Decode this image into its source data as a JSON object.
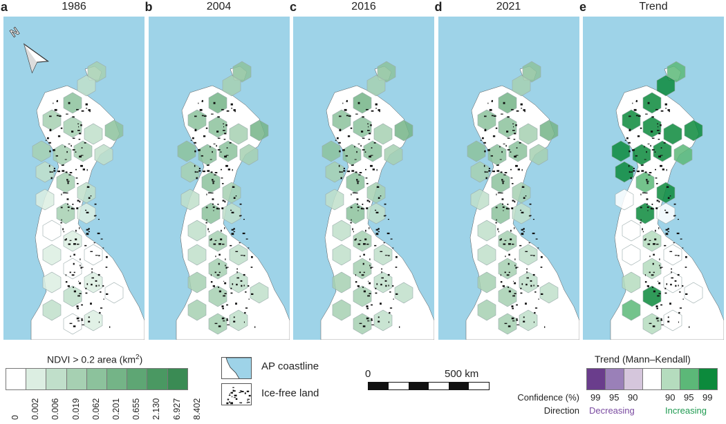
{
  "panels": [
    {
      "letter": "a",
      "year": "1986"
    },
    {
      "letter": "b",
      "year": "2004"
    },
    {
      "letter": "c",
      "year": "2016"
    },
    {
      "letter": "d",
      "year": "2021"
    },
    {
      "letter": "e",
      "year": "Trend"
    }
  ],
  "north_label": "N",
  "legend_ndvi": {
    "title_prefix": "NDVI > 0.2 area (km",
    "title_sup": "2",
    "title_suffix": ")",
    "ticks": [
      "0",
      "0.002",
      "0.006",
      "0.019",
      "0.062",
      "0.201",
      "0.655",
      "2.130",
      "6.927",
      "8.402"
    ],
    "colors": [
      "#ffffff",
      "#dceee2",
      "#c0dfca",
      "#a6d0b2",
      "#8cc29c",
      "#74b487",
      "#5ea674",
      "#4a9862",
      "#3a8b54"
    ]
  },
  "legend_map": {
    "coastline_label": "AP coastline",
    "icefree_label": "Ice-free land"
  },
  "scale_bar": {
    "start": "0",
    "end": "500 km"
  },
  "legend_trend": {
    "title": "Trend (Mann–Kendall)",
    "confidence_label": "Confidence (%)",
    "direction_label": "Direction",
    "decreasing_label": "Decreasing",
    "increasing_label": "Increasing",
    "confidence_values": [
      "99",
      "95",
      "90",
      "",
      "90",
      "95",
      "99"
    ],
    "colors": [
      "#6a3d8c",
      "#9a80b8",
      "#d5c6dc",
      "#ffffff",
      "#b5dcbe",
      "#5cb878",
      "#0c8a3c"
    ],
    "decreasing_color": "#7a4aa0",
    "increasing_color": "#1e9a50"
  },
  "colors": {
    "sea": "#9ed3e8",
    "land": "#ffffff",
    "ice_free": "#111111"
  }
}
